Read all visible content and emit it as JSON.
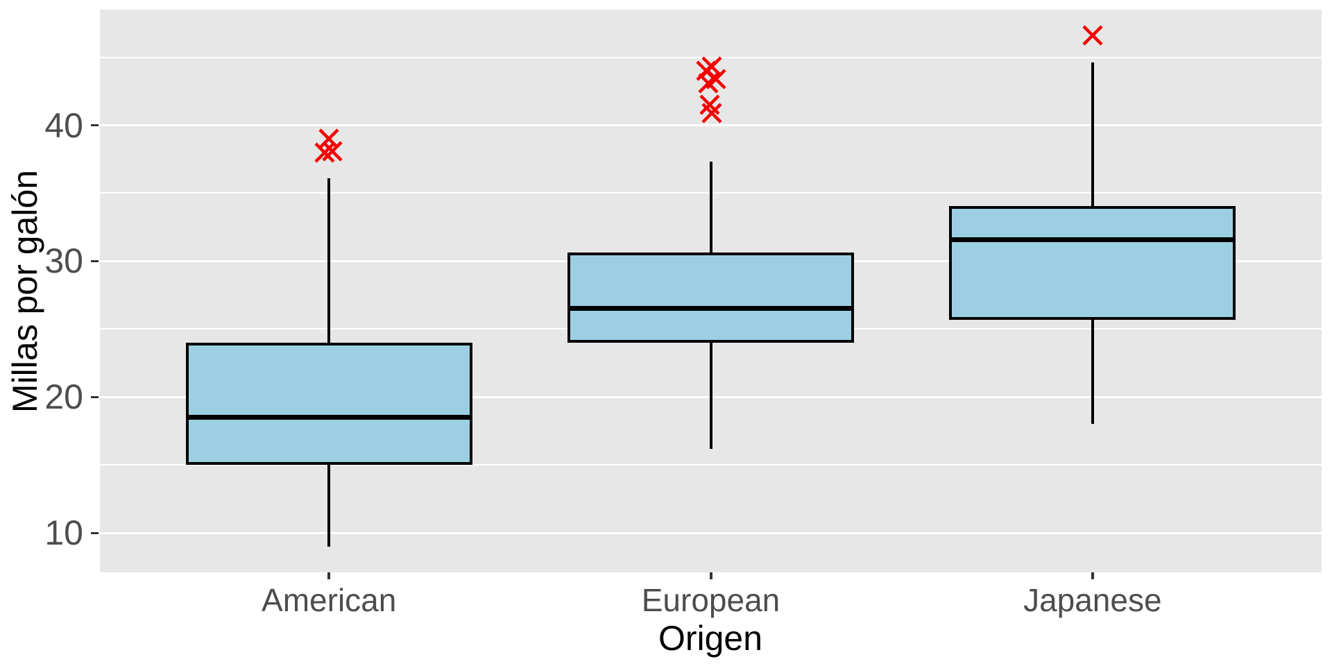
{
  "chart_data": {
    "type": "boxplot",
    "title": "",
    "xlabel": "Origen",
    "ylabel": "Millas por galón",
    "categories": [
      "American",
      "European",
      "Japanese"
    ],
    "yticks": [
      10,
      20,
      30,
      40
    ],
    "minor_ticks": [
      15,
      25,
      35,
      45
    ],
    "ylim": [
      7.1,
      48.5
    ],
    "grid": "horizontal major+minor white lines on gray panel",
    "legend": "none",
    "series": [
      {
        "name": "American",
        "whisker_low": 9.0,
        "q1": 15.0,
        "median": 18.5,
        "q3": 24.0,
        "whisker_high": 36.1,
        "outliers": [
          38.0,
          38.1,
          39.0
        ],
        "outlier_dx": [
          -6,
          5,
          0
        ]
      },
      {
        "name": "European",
        "whisker_low": 16.2,
        "q1": 24.0,
        "median": 26.5,
        "q3": 30.65,
        "whisker_high": 37.3,
        "outliers": [
          40.9,
          41.5,
          43.1,
          43.4,
          44.0,
          44.3
        ],
        "outlier_dx": [
          1,
          -2,
          -4,
          7,
          -7,
          1
        ]
      },
      {
        "name": "Japanese",
        "whisker_low": 18.0,
        "q1": 25.7,
        "median": 31.6,
        "q3": 34.05,
        "whisker_high": 44.6,
        "outliers": [
          46.6
        ],
        "outlier_dx": [
          0
        ]
      }
    ],
    "colors": {
      "panel_bg": "#E7E7E7",
      "grid": "#FFFFFF",
      "box_fill": "#9DCFE2",
      "box_border": "#000000",
      "median": "#000000",
      "whisker": "#000000",
      "outlier": "#F40000",
      "tick_text": "#4D4D4D",
      "title_text": "#000000",
      "tick_mark": "#333333"
    }
  }
}
